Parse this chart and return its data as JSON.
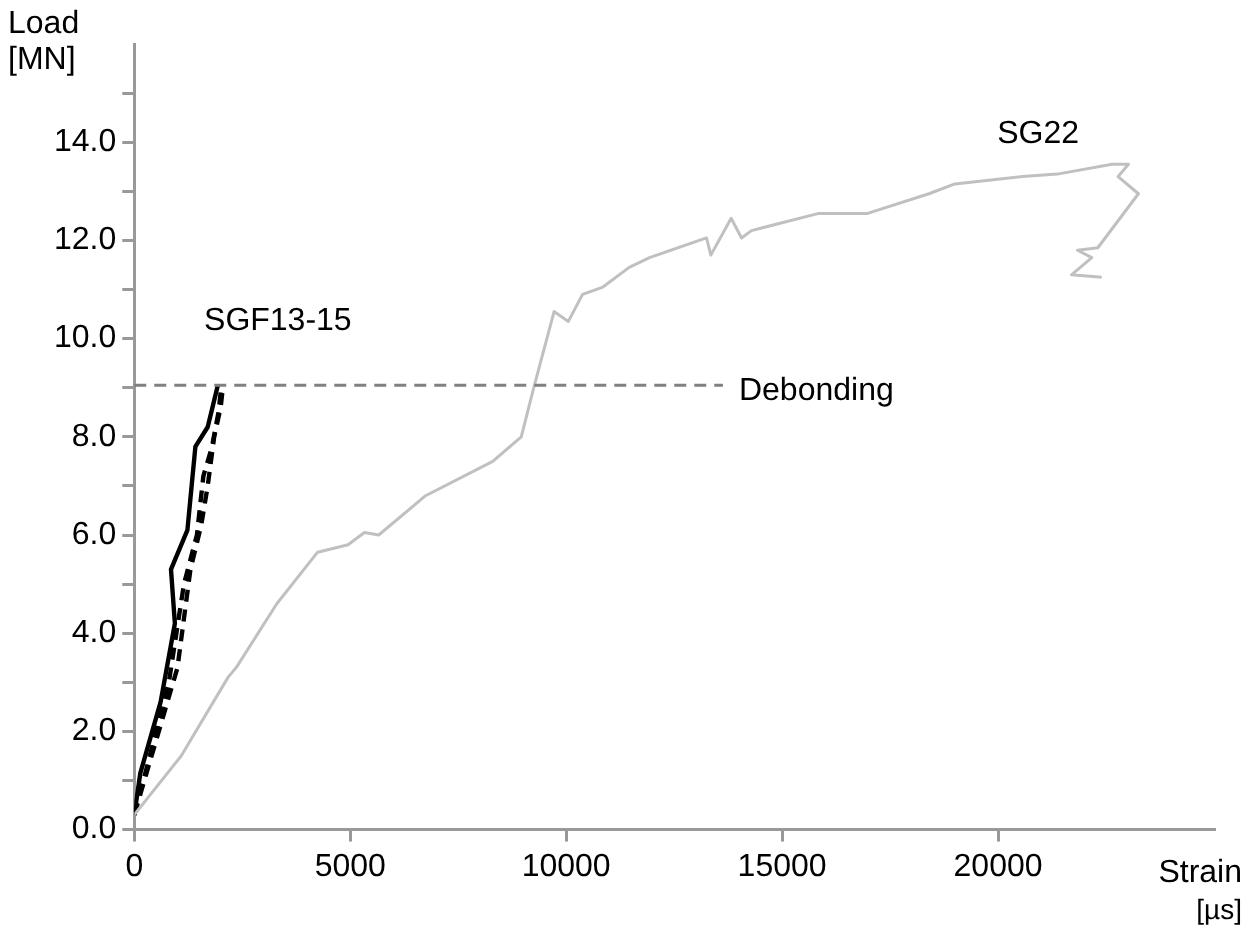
{
  "chart_data": {
    "type": "line",
    "xlabel": "Strain [µs]",
    "ylabel": "Load [MN]",
    "xlim": [
      0,
      25000
    ],
    "ylim": [
      0,
      16
    ],
    "xticks": [
      0,
      5000,
      10000,
      15000,
      20000
    ],
    "yticks": [
      {
        "value": 0,
        "label": "0.0"
      },
      {
        "value": 1,
        "label": null
      },
      {
        "value": 2,
        "label": "2.0"
      },
      {
        "value": 3,
        "label": null
      },
      {
        "value": 4,
        "label": "4.0"
      },
      {
        "value": 5,
        "label": null
      },
      {
        "value": 6,
        "label": "6.0"
      },
      {
        "value": 7,
        "label": null
      },
      {
        "value": 8,
        "label": "8.0"
      },
      {
        "value": 9,
        "label": null
      },
      {
        "value": 10,
        "label": "10.0"
      },
      {
        "value": 11,
        "label": null
      },
      {
        "value": 12,
        "label": "12.0"
      },
      {
        "value": 13,
        "label": null
      },
      {
        "value": 14,
        "label": "14.0"
      },
      {
        "value": 15,
        "label": null
      }
    ],
    "grid": false,
    "legend": false,
    "marker": "none",
    "series": [
      {
        "name": "SG22",
        "color": "#c0c0c0",
        "line_style": "solid",
        "x": [
          0,
          1085,
          2170,
          2360,
          3300,
          4245,
          4950,
          5330,
          5660,
          6745,
          8300,
          8960,
          9250,
          9720,
          10050,
          10380,
          10850,
          11460,
          11930,
          13250,
          13350,
          13820,
          14060,
          14290,
          15850,
          16980,
          18400,
          19000,
          20570,
          21370,
          22640,
          23020,
          22780,
          23250,
          22780,
          22310,
          21840,
          22170,
          21700,
          22400
        ],
        "values": [
          0.3,
          1.5,
          3.1,
          3.3,
          4.6,
          5.65,
          5.8,
          6.05,
          6.0,
          6.8,
          7.5,
          8.0,
          9.0,
          10.55,
          10.35,
          10.9,
          11.05,
          11.45,
          11.65,
          12.05,
          11.7,
          12.45,
          12.05,
          12.2,
          12.55,
          12.55,
          12.95,
          13.15,
          13.3,
          13.35,
          13.55,
          13.55,
          13.3,
          12.95,
          12.4,
          11.85,
          11.8,
          11.65,
          11.3,
          11.25
        ]
      },
      {
        "name": "SGF13-15",
        "color": "#000000",
        "line_style": "solid",
        "x": [
          0,
          140,
          610,
          940,
          850,
          1230,
          1415,
          1700,
          1935
        ],
        "values": [
          0.3,
          1.15,
          2.6,
          4.2,
          5.3,
          6.1,
          7.8,
          8.2,
          9.05
        ]
      },
      {
        "color": "#000000",
        "line_style": "dashed",
        "x": [
          0,
          400,
          1000,
          1300,
          1550,
          1700,
          1850,
          2000,
          2050
        ],
        "values": [
          0.3,
          1.5,
          3.3,
          5.3,
          6.2,
          7.0,
          8.0,
          8.6,
          9.0
        ]
      },
      {
        "color": "#000000",
        "line_style": "dashed",
        "x": [
          0,
          300,
          800,
          1150,
          1450,
          1600,
          1800,
          1950,
          2000
        ],
        "values": [
          0.3,
          1.3,
          3.0,
          5.0,
          6.0,
          7.2,
          7.8,
          8.5,
          8.9
        ]
      }
    ],
    "ref_lines": [
      {
        "axis": "y",
        "value": 9.05,
        "label": "Debonding",
        "color": "#808080",
        "line_style": "dashed"
      }
    ]
  }
}
